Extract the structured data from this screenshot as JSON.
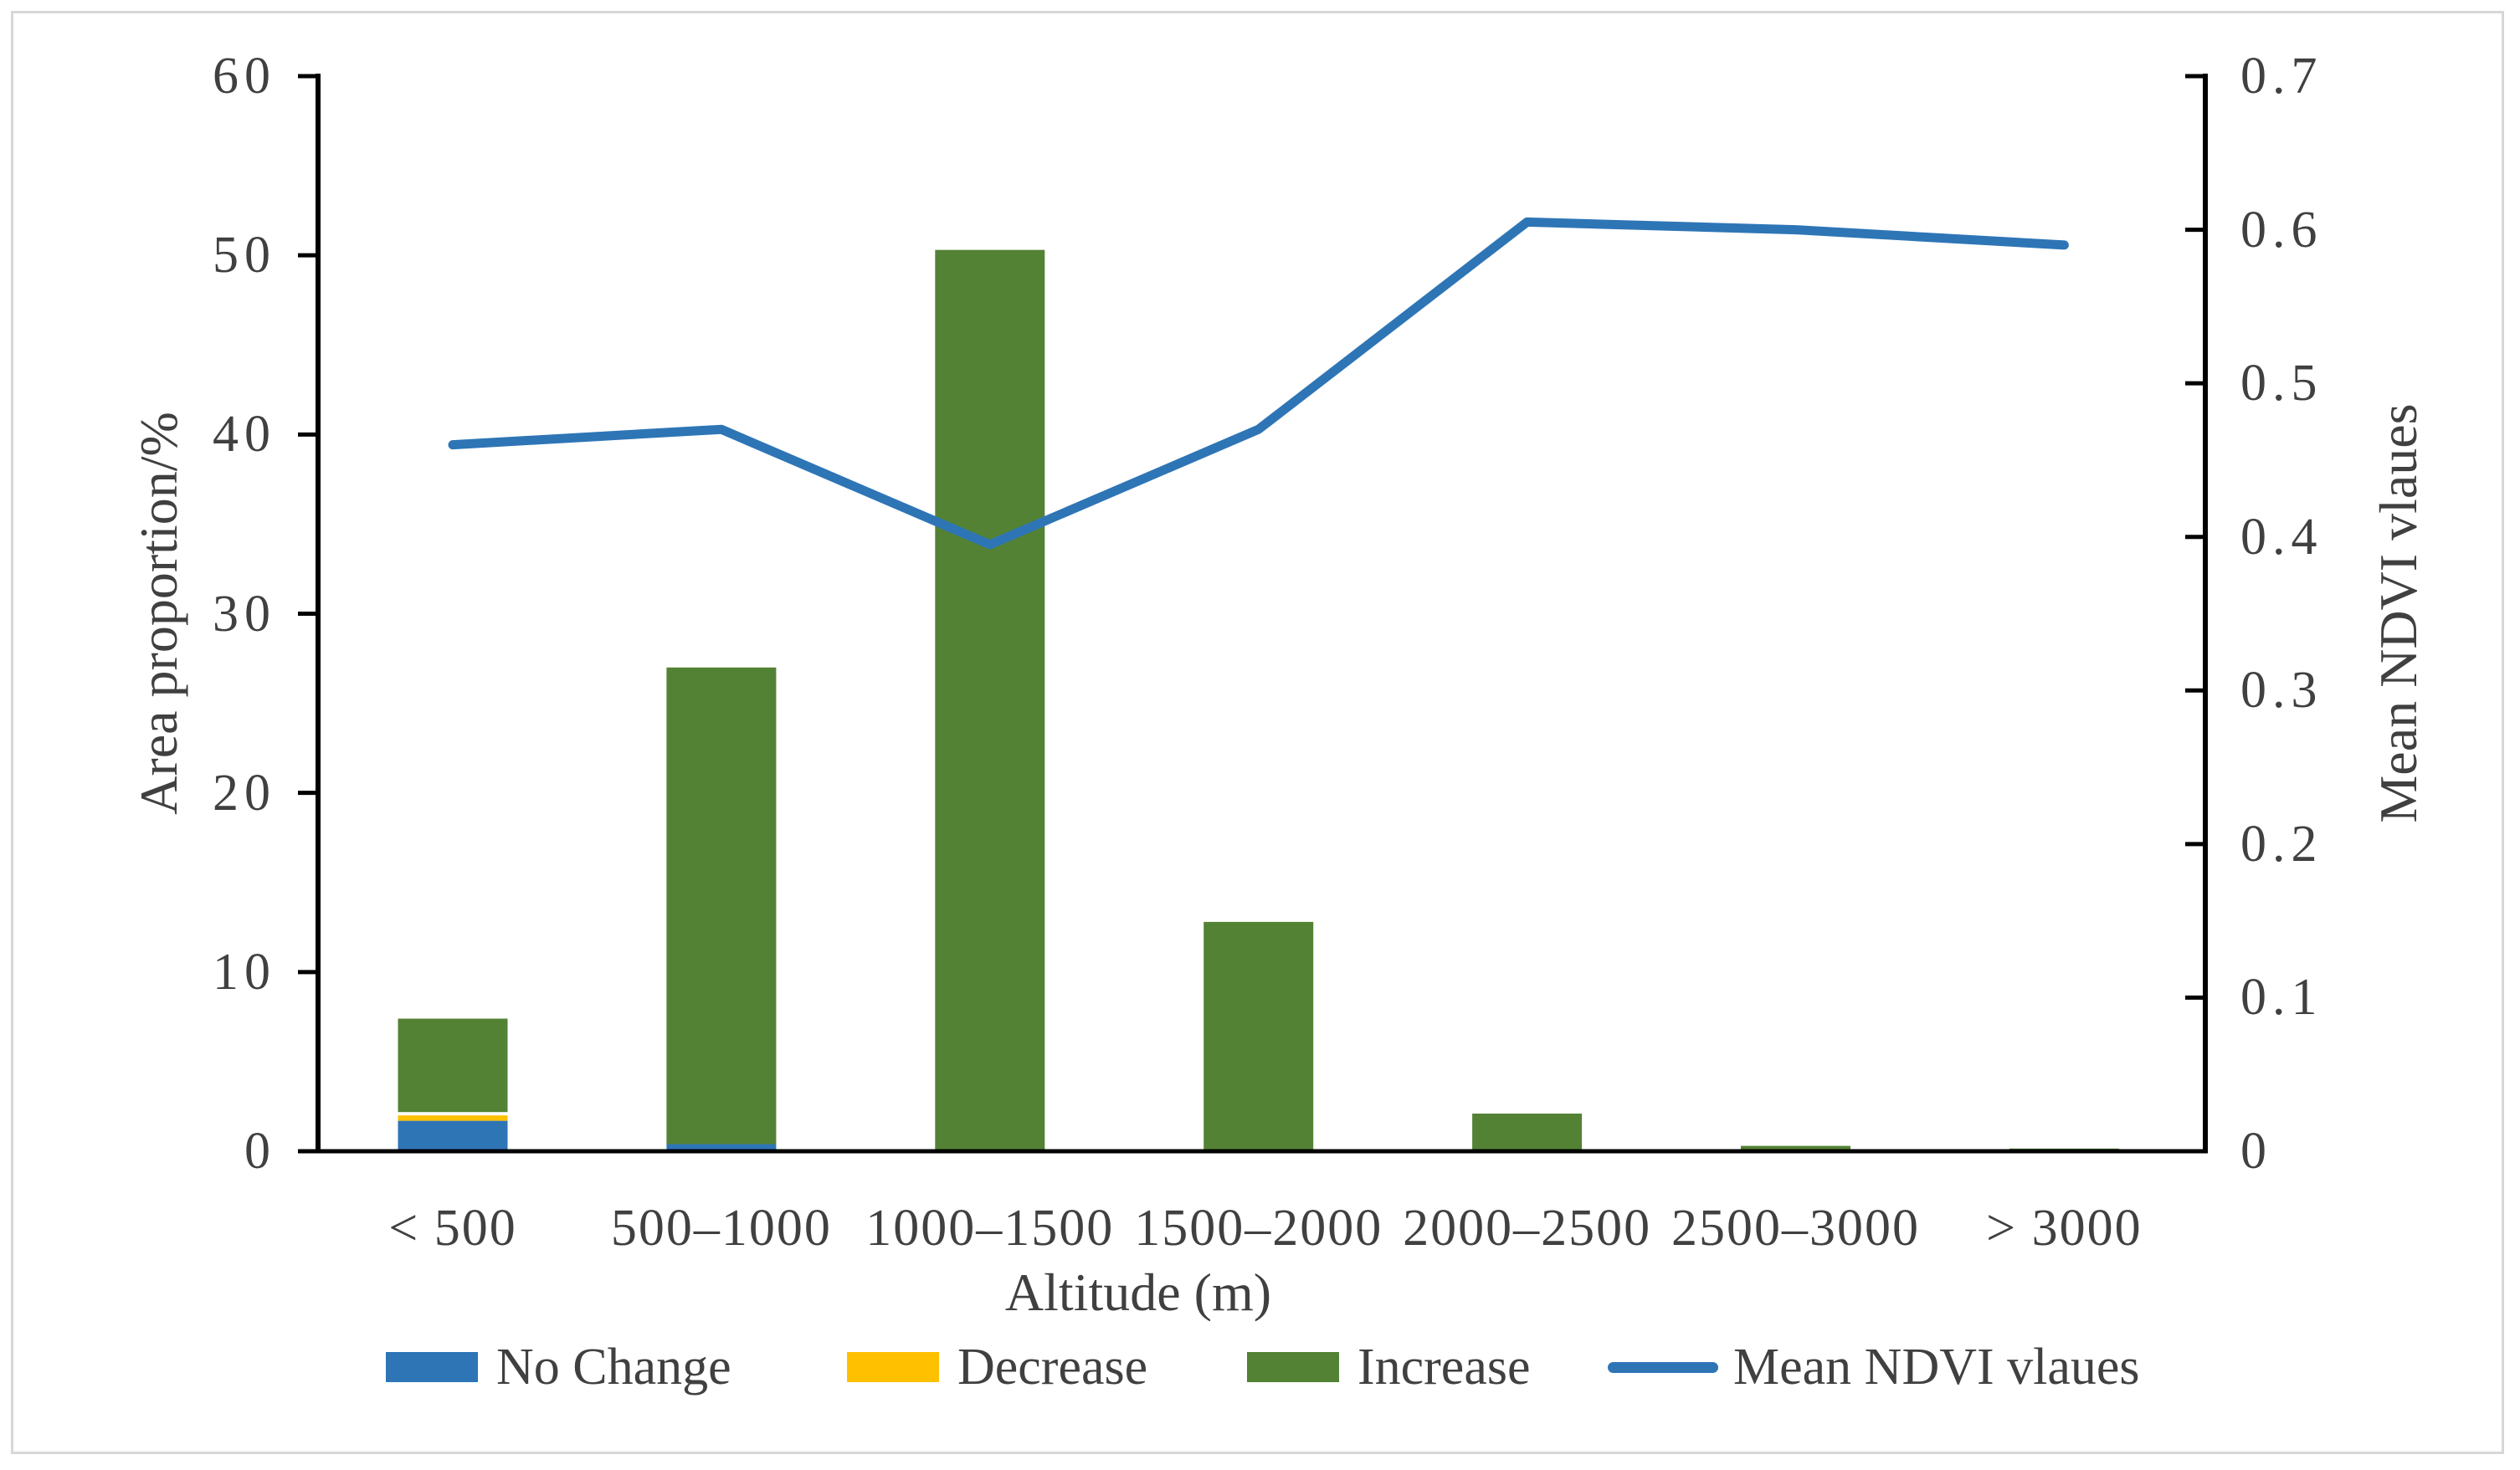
{
  "chart_data": {
    "type": "bar",
    "subtype": "stacked-bars-with-line-combo",
    "title": "",
    "categories": [
      "< 500",
      "500–1000",
      "1000–1500",
      "1500–2000",
      "2000–2500",
      "2500–3000",
      "> 3000"
    ],
    "series": [
      {
        "name": "No Change",
        "type": "bar",
        "axis": "left",
        "color": "#2E75B6",
        "values": [
          1.7,
          0.4,
          0,
          0,
          0,
          0,
          0
        ]
      },
      {
        "name": "Decrease",
        "type": "bar",
        "axis": "left",
        "color": "#FFC000",
        "values": [
          0.3,
          0,
          0,
          0,
          0,
          0,
          0
        ]
      },
      {
        "name": "Increase",
        "type": "bar",
        "axis": "left",
        "color": "#548235",
        "values": [
          5.4,
          26.6,
          50.3,
          12.8,
          2.1,
          0.3,
          0.15
        ]
      },
      {
        "name": "Mean NDVI vlaues",
        "type": "line",
        "axis": "right",
        "color": "#2E75B6",
        "values": [
          0.46,
          0.47,
          0.395,
          0.47,
          0.605,
          0.6,
          0.59
        ]
      }
    ],
    "bar_totals": [
      7.4,
      27.0,
      50.3,
      12.8,
      2.1,
      0.3,
      0.15
    ],
    "xlabel": "Altitude (m)",
    "ylabel_left": "Area proportion/%",
    "ylabel_right": "Mean NDVI vlaues",
    "left_axis": {
      "min": 0,
      "max": 60,
      "ticks": [
        "0",
        "10",
        "20",
        "30",
        "40",
        "50",
        "60"
      ]
    },
    "right_axis": {
      "min": 0,
      "max": 0.7,
      "ticks": [
        "0",
        "0.1",
        "0.2",
        "0.3",
        "0.4",
        "0.5",
        "0.6",
        "0.7"
      ]
    },
    "grid": "off",
    "legend_position": "bottom",
    "legend": [
      {
        "label": "No Change",
        "type": "swatch",
        "color": "#2E75B6"
      },
      {
        "label": "Decrease",
        "type": "swatch",
        "color": "#FFC000"
      },
      {
        "label": "Increase",
        "type": "swatch",
        "color": "#548235"
      },
      {
        "label": "Mean NDVI vlaues",
        "type": "line",
        "color": "#2E75B6"
      }
    ],
    "colors": {
      "no_change_blue": "#2E75B6",
      "decrease_yellow": "#FFC000",
      "increase_green": "#548235",
      "ndvi_line_blue": "#2E75B6",
      "axis_line": "#000000",
      "text_gray": "#404040",
      "frame_border": "#D7D7D7"
    }
  }
}
